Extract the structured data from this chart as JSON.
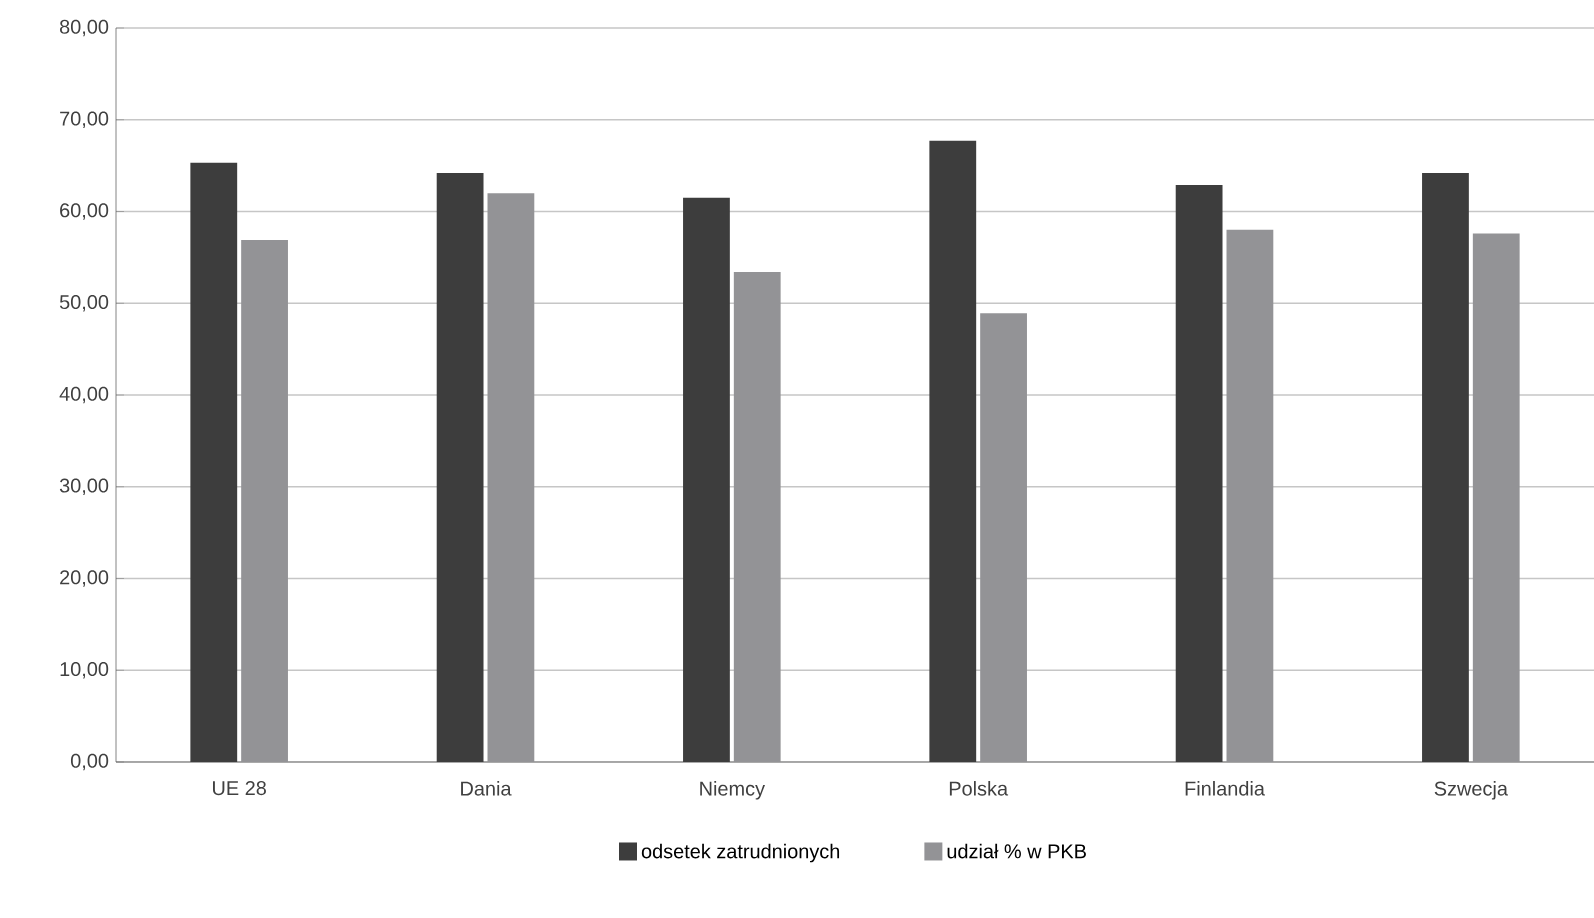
{
  "chart_data": {
    "type": "bar",
    "categories": [
      "UE 28",
      "Dania",
      "Niemcy",
      "Polska",
      "Finlandia",
      "Szwecja"
    ],
    "series": [
      {
        "name": "odsetek zatrudnionych",
        "color": "#3d3d3d",
        "values": [
          65.3,
          64.2,
          61.5,
          67.7,
          62.9,
          64.2
        ]
      },
      {
        "name": "udział % w PKB",
        "color": "#939396",
        "values": [
          56.9,
          62.0,
          53.4,
          48.9,
          58.0,
          57.6
        ]
      }
    ],
    "ylim": [
      0,
      80
    ],
    "yticks": [
      {
        "value": 0,
        "label": "0,00"
      },
      {
        "value": 10,
        "label": "10,00"
      },
      {
        "value": 20,
        "label": "20,00"
      },
      {
        "value": 30,
        "label": "30,00"
      },
      {
        "value": 40,
        "label": "40,00"
      },
      {
        "value": 50,
        "label": "50,00"
      },
      {
        "value": 60,
        "label": "60,00"
      },
      {
        "value": 70,
        "label": "70,00"
      },
      {
        "value": 80,
        "label": "80,00"
      }
    ],
    "grid": "y",
    "legend": "bottom"
  }
}
